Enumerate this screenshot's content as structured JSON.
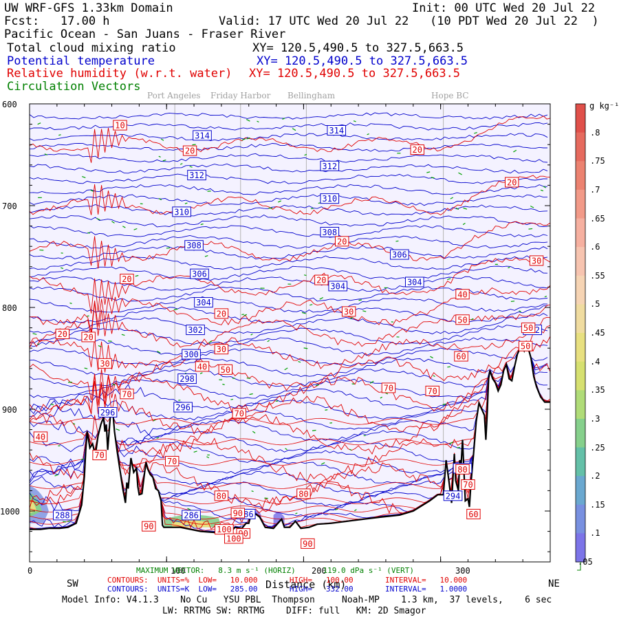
{
  "header": {
    "model": "UW WRF-GFS 1.33km Domain",
    "init": "Init: 00 UTC Wed 20 Jul 22",
    "fcst": "Fcst:   17.00 h",
    "valid": "Valid: 17 UTC Wed 20 Jul 22   (10 PDT Wed 20 Jul 22  )",
    "region": "Pacific Ocean - San Juans - Fraser River",
    "field1": "Total cloud mixing ratio",
    "field1_xy": "XY= 120.5,490.5 to 327.5,663.5",
    "field2": "Potential temperature",
    "field2_xy": "XY= 120.5,490.5 to 327.5,663.5",
    "field3": "Relative humidity (w.r.t. water)",
    "field3_xy": "XY= 120.5,490.5 to 327.5,663.5",
    "field4": "Circulation Vectors"
  },
  "place_labels": [
    "Port Angeles",
    "Friday Harbor",
    "Bellingham",
    "Hope BC"
  ],
  "footer": {
    "sw": "SW",
    "ne": "NE",
    "xlabel": "Distance (km)",
    "max_vector": "MAXIMUM VECTOR:   8.3 m s⁻¹ (HORIZ)      119.0 dPa s⁻¹ (VERT)",
    "contours_rh": "CONTOURS:  UNITS=%  LOW=   10.000       HIGH=   100.00       INTERVAL=   10.000",
    "contours_th": "CONTOURS:  UNITS=K  LOW=   285.00       HIGH=   332.00       INTERVAL=   1.0000",
    "model_info": "Model Info: V4.1.3    No Cu   YSU PBL  Thompson     Noah-MP    1.3 km,  37 levels,    6 sec",
    "physics": "LW: RRTMG SW: RRTMG    DIFF: full   KM: 2D Smagor"
  },
  "chart_data": {
    "type": "cross-section",
    "xlabel": "Distance (km)",
    "ylabel": "",
    "xlim": [
      0,
      380
    ],
    "ylim": [
      1050,
      600
    ],
    "x_ticks": [
      "0",
      "100",
      "200",
      "300"
    ],
    "x_tick_values": [
      0,
      100,
      200,
      300
    ],
    "y_ticks": [
      "600",
      "700",
      "800",
      "900",
      "1000"
    ],
    "y_tick_values": [
      600,
      700,
      800,
      900,
      1000
    ],
    "colorbar": {
      "units": "g kg⁻¹",
      "labels": [
        ".8",
        ".75",
        ".7",
        ".65",
        ".6",
        ".55",
        ".5",
        ".45",
        ".4",
        ".35",
        ".3",
        ".25",
        ".2",
        ".15",
        ".1",
        ".05"
      ],
      "colors": [
        "#e0504a",
        "#e66a5e",
        "#ec8270",
        "#f29a88",
        "#f6b0a0",
        "#f7c4b0",
        "#f6d4b4",
        "#f0dca0",
        "#e8e080",
        "#d6e070",
        "#b0dc78",
        "#86d08c",
        "#64c0a8",
        "#6aa8d0",
        "#7890e0",
        "#7c74e8"
      ]
    },
    "theta_labels": [
      {
        "v": "314",
        "x": 126,
        "y": 631
      },
      {
        "v": "314",
        "x": 224,
        "y": 626
      },
      {
        "v": "312",
        "x": 122,
        "y": 670
      },
      {
        "v": "312",
        "x": 219,
        "y": 661
      },
      {
        "v": "310",
        "x": 111,
        "y": 706
      },
      {
        "v": "310",
        "x": 219,
        "y": 693
      },
      {
        "v": "308",
        "x": 120,
        "y": 739
      },
      {
        "v": "308",
        "x": 219,
        "y": 726
      },
      {
        "v": "306",
        "x": 124,
        "y": 767
      },
      {
        "v": "306",
        "x": 270,
        "y": 748
      },
      {
        "v": "304",
        "x": 127,
        "y": 795
      },
      {
        "v": "304",
        "x": 225,
        "y": 779
      },
      {
        "v": "304",
        "x": 281,
        "y": 775
      },
      {
        "v": "302",
        "x": 121,
        "y": 822
      },
      {
        "v": "302",
        "x": 367,
        "y": 822
      },
      {
        "v": "300",
        "x": 118,
        "y": 846
      },
      {
        "v": "298",
        "x": 115,
        "y": 870
      },
      {
        "v": "296",
        "x": 57,
        "y": 903
      },
      {
        "v": "296",
        "x": 112,
        "y": 898
      },
      {
        "v": "296",
        "x": 316,
        "y": 958
      },
      {
        "v": "294",
        "x": 309,
        "y": 985
      },
      {
        "v": "288",
        "x": 24,
        "y": 1004
      },
      {
        "v": "286",
        "x": 118,
        "y": 1004
      },
      {
        "v": "286",
        "x": 158,
        "y": 1003
      }
    ],
    "rh_labels": [
      {
        "v": "10",
        "x": 66,
        "y": 621
      },
      {
        "v": "20",
        "x": 117,
        "y": 646
      },
      {
        "v": "20",
        "x": 283,
        "y": 645
      },
      {
        "v": "20",
        "x": 352,
        "y": 677
      },
      {
        "v": "20",
        "x": 71,
        "y": 772
      },
      {
        "v": "20",
        "x": 213,
        "y": 773
      },
      {
        "v": "20",
        "x": 228,
        "y": 735
      },
      {
        "v": "20",
        "x": 140,
        "y": 806
      },
      {
        "v": "20",
        "x": 24,
        "y": 826
      },
      {
        "v": "20",
        "x": 43,
        "y": 829
      },
      {
        "v": "30",
        "x": 55,
        "y": 855
      },
      {
        "v": "30",
        "x": 140,
        "y": 841
      },
      {
        "v": "30",
        "x": 233,
        "y": 804
      },
      {
        "v": "30",
        "x": 370,
        "y": 754
      },
      {
        "v": "40",
        "x": 8,
        "y": 927
      },
      {
        "v": "40",
        "x": 126,
        "y": 858
      },
      {
        "v": "40",
        "x": 316,
        "y": 787
      },
      {
        "v": "50",
        "x": 143,
        "y": 861
      },
      {
        "v": "50",
        "x": 316,
        "y": 812
      },
      {
        "v": "50",
        "x": 364,
        "y": 820
      },
      {
        "v": "50",
        "x": 362,
        "y": 838
      },
      {
        "v": "60",
        "x": 315,
        "y": 848
      },
      {
        "v": "60",
        "x": 324,
        "y": 1003
      },
      {
        "v": "70",
        "x": 71,
        "y": 885
      },
      {
        "v": "70",
        "x": 153,
        "y": 904
      },
      {
        "v": "70",
        "x": 262,
        "y": 879
      },
      {
        "v": "70",
        "x": 294,
        "y": 882
      },
      {
        "v": "70",
        "x": 104,
        "y": 951
      },
      {
        "v": "70",
        "x": 51,
        "y": 945
      },
      {
        "v": "70",
        "x": 320,
        "y": 974
      },
      {
        "v": "80",
        "x": 140,
        "y": 985
      },
      {
        "v": "80",
        "x": 200,
        "y": 983
      },
      {
        "v": "80",
        "x": 316,
        "y": 959
      },
      {
        "v": "90",
        "x": 152,
        "y": 1002
      },
      {
        "v": "90",
        "x": 87,
        "y": 1015
      },
      {
        "v": "90",
        "x": 156,
        "y": 1022
      },
      {
        "v": "90",
        "x": 203,
        "y": 1032
      },
      {
        "v": "100",
        "x": 142,
        "y": 1018
      },
      {
        "v": "100",
        "x": 149,
        "y": 1027
      }
    ],
    "terrain": [
      [
        0,
        1018
      ],
      [
        8,
        1018
      ],
      [
        14,
        1017
      ],
      [
        22,
        1017
      ],
      [
        28,
        1016
      ],
      [
        34,
        1012
      ],
      [
        38,
        994
      ],
      [
        40,
        966
      ],
      [
        41,
        940
      ],
      [
        42,
        922
      ],
      [
        44,
        938
      ],
      [
        46,
        934
      ],
      [
        48,
        945
      ],
      [
        50,
        926
      ],
      [
        52,
        915
      ],
      [
        54,
        908
      ],
      [
        55,
        922
      ],
      [
        56,
        915
      ],
      [
        57,
        940
      ],
      [
        59,
        906
      ],
      [
        61,
        906
      ],
      [
        62,
        922
      ],
      [
        64,
        942
      ],
      [
        66,
        960
      ],
      [
        68,
        978
      ],
      [
        70,
        992
      ],
      [
        71,
        972
      ],
      [
        72,
        978
      ],
      [
        74,
        948
      ],
      [
        76,
        962
      ],
      [
        78,
        958
      ],
      [
        79,
        976
      ],
      [
        80,
        984
      ],
      [
        82,
        983
      ],
      [
        84,
        962
      ],
      [
        85,
        952
      ],
      [
        86,
        958
      ],
      [
        88,
        964
      ],
      [
        90,
        967
      ],
      [
        92,
        978
      ],
      [
        94,
        980
      ],
      [
        96,
        990
      ],
      [
        97,
        1014
      ],
      [
        98,
        1016
      ],
      [
        110,
        1016
      ],
      [
        125,
        1020
      ],
      [
        135,
        1021
      ],
      [
        146,
        1021
      ],
      [
        150,
        1016
      ],
      [
        155,
        1017
      ],
      [
        158,
        1012
      ],
      [
        160,
        1012
      ],
      [
        162,
        1002
      ],
      [
        164,
        1002
      ],
      [
        166,
        1004
      ],
      [
        168,
        1006
      ],
      [
        172,
        1016
      ],
      [
        178,
        1017
      ],
      [
        184,
        1008
      ],
      [
        186,
        1016
      ],
      [
        190,
        1016
      ],
      [
        194,
        1010
      ],
      [
        198,
        1017
      ],
      [
        204,
        1016
      ],
      [
        210,
        1013
      ],
      [
        220,
        1012
      ],
      [
        232,
        1010
      ],
      [
        244,
        1008
      ],
      [
        256,
        1006
      ],
      [
        270,
        1004
      ],
      [
        280,
        1000
      ],
      [
        292,
        990
      ],
      [
        298,
        984
      ],
      [
        302,
        984
      ],
      [
        304,
        950
      ],
      [
        306,
        970
      ],
      [
        308,
        992
      ],
      [
        310,
        944
      ],
      [
        311,
        970
      ],
      [
        313,
        980
      ],
      [
        314,
        950
      ],
      [
        315,
        954
      ],
      [
        316,
        930
      ],
      [
        318,
        990
      ],
      [
        320,
        988
      ],
      [
        321,
        996
      ],
      [
        322,
        975
      ],
      [
        323,
        960
      ],
      [
        324,
        945
      ],
      [
        326,
        912
      ],
      [
        328,
        894
      ],
      [
        330,
        900
      ],
      [
        332,
        906
      ],
      [
        333,
        930
      ],
      [
        334,
        904
      ],
      [
        335,
        870
      ],
      [
        336,
        862
      ],
      [
        338,
        870
      ],
      [
        340,
        874
      ],
      [
        342,
        882
      ],
      [
        344,
        876
      ],
      [
        346,
        862
      ],
      [
        348,
        856
      ],
      [
        350,
        870
      ],
      [
        352,
        872
      ],
      [
        354,
        858
      ],
      [
        356,
        846
      ],
      [
        358,
        840
      ],
      [
        360,
        838
      ],
      [
        361,
        842
      ],
      [
        362,
        836
      ],
      [
        364,
        840
      ],
      [
        366,
        850
      ],
      [
        368,
        868
      ],
      [
        370,
        878
      ],
      [
        373,
        888
      ],
      [
        376,
        893
      ],
      [
        380,
        893
      ]
    ],
    "rh_lines_bottom": [
      1016,
      1010,
      1005,
      998,
      990,
      975,
      952,
      932,
      912
    ]
  }
}
